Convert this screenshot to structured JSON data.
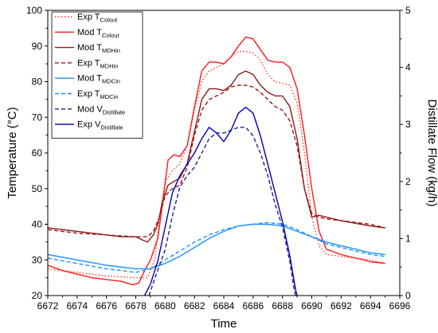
{
  "chart_data": {
    "type": "line",
    "xlabel": "Time",
    "ylabel": "Temperature (°C)",
    "y2label": "Distillate Flow (kg/h)",
    "xlim": [
      6672,
      6696
    ],
    "ylim": [
      20,
      100
    ],
    "y2lim": [
      0,
      5
    ],
    "x_ticks": [
      6672,
      6674,
      6676,
      6678,
      6680,
      6682,
      6684,
      6686,
      6688,
      6690,
      6692,
      6694,
      6696
    ],
    "y_ticks": [
      20,
      30,
      40,
      50,
      60,
      70,
      80,
      90,
      100
    ],
    "y2_ticks": [
      0,
      1,
      2,
      3,
      4,
      5
    ],
    "grid": false,
    "legend_position": "top-left",
    "series": [
      {
        "label_main": "Exp T",
        "label_sub": "Colout",
        "color": "#ff3b30",
        "style": "dotted",
        "axis": "left",
        "points": [
          [
            6672,
            27.5
          ],
          [
            6674,
            26.5
          ],
          [
            6676,
            25.5
          ],
          [
            6678,
            25
          ],
          [
            6678.8,
            25
          ],
          [
            6679.3,
            30
          ],
          [
            6679.7,
            44
          ],
          [
            6680,
            52
          ],
          [
            6680.5,
            55
          ],
          [
            6681,
            57
          ],
          [
            6681.5,
            62
          ],
          [
            6682,
            72
          ],
          [
            6682.5,
            80
          ],
          [
            6683,
            83
          ],
          [
            6683.5,
            84
          ],
          [
            6684,
            85
          ],
          [
            6684.5,
            87
          ],
          [
            6685,
            88.5
          ],
          [
            6685.5,
            88.5
          ],
          [
            6686,
            88
          ],
          [
            6686.5,
            86
          ],
          [
            6687,
            82
          ],
          [
            6687.5,
            80
          ],
          [
            6688,
            79.5
          ],
          [
            6688.5,
            79
          ],
          [
            6689,
            74
          ],
          [
            6689.5,
            60
          ],
          [
            6690,
            42
          ],
          [
            6690.5,
            34
          ],
          [
            6691,
            31.5
          ],
          [
            6692,
            31
          ],
          [
            6694,
            30
          ],
          [
            6695,
            29
          ]
        ]
      },
      {
        "label_main": "Mod T",
        "label_sub": "Colout",
        "color": "#ff1a1a",
        "style": "solid",
        "axis": "left",
        "points": [
          [
            6672,
            28.5
          ],
          [
            6673,
            27
          ],
          [
            6674,
            26
          ],
          [
            6675,
            25
          ],
          [
            6676,
            24.5
          ],
          [
            6677,
            24
          ],
          [
            6677.8,
            23
          ],
          [
            6678.2,
            23.5
          ],
          [
            6678.6,
            27
          ],
          [
            6679,
            30
          ],
          [
            6679.5,
            36
          ],
          [
            6679.8,
            45
          ],
          [
            6680.2,
            58
          ],
          [
            6680.6,
            59.5
          ],
          [
            6681,
            59
          ],
          [
            6681.5,
            62
          ],
          [
            6682,
            73
          ],
          [
            6682.5,
            83
          ],
          [
            6683,
            85.5
          ],
          [
            6683.5,
            85.5
          ],
          [
            6684,
            85
          ],
          [
            6684.5,
            87
          ],
          [
            6685,
            90
          ],
          [
            6685.5,
            92.5
          ],
          [
            6686,
            92
          ],
          [
            6686.5,
            89
          ],
          [
            6687,
            86
          ],
          [
            6687.5,
            85.5
          ],
          [
            6688,
            85.5
          ],
          [
            6688.5,
            84
          ],
          [
            6689,
            78
          ],
          [
            6689.5,
            65
          ],
          [
            6690,
            50
          ],
          [
            6690.5,
            38
          ],
          [
            6691,
            33
          ],
          [
            6692,
            31.5
          ],
          [
            6693,
            30.5
          ],
          [
            6694,
            29.5
          ],
          [
            6695,
            29
          ]
        ]
      },
      {
        "label_main": "Mod T",
        "label_sub": "MDHin",
        "color": "#8b1a1a",
        "style": "solid",
        "axis": "left",
        "points": [
          [
            6672,
            39
          ],
          [
            6674,
            38
          ],
          [
            6676,
            37
          ],
          [
            6677,
            36.5
          ],
          [
            6678,
            36.5
          ],
          [
            6678.5,
            35.5
          ],
          [
            6678.8,
            35
          ],
          [
            6679.2,
            37
          ],
          [
            6679.5,
            40
          ],
          [
            6679.8,
            46
          ],
          [
            6680.2,
            51
          ],
          [
            6680.6,
            52
          ],
          [
            6681,
            53
          ],
          [
            6681.5,
            57
          ],
          [
            6682,
            66
          ],
          [
            6682.5,
            75
          ],
          [
            6683,
            78
          ],
          [
            6683.5,
            78
          ],
          [
            6684,
            77.5
          ],
          [
            6684.5,
            79
          ],
          [
            6685,
            82
          ],
          [
            6685.5,
            83
          ],
          [
            6686,
            82
          ],
          [
            6686.5,
            79
          ],
          [
            6687,
            77
          ],
          [
            6687.5,
            76
          ],
          [
            6688,
            76
          ],
          [
            6688.5,
            73
          ],
          [
            6689,
            64
          ],
          [
            6689.5,
            50
          ],
          [
            6690,
            42
          ],
          [
            6690.5,
            42.5
          ],
          [
            6691,
            42
          ],
          [
            6692,
            41
          ],
          [
            6694,
            39.5
          ],
          [
            6695,
            39
          ]
        ]
      },
      {
        "label_main": "Exp T",
        "label_sub": "MDHin",
        "color": "#a31515",
        "style": "dashed",
        "axis": "left",
        "points": [
          [
            6672,
            38.5
          ],
          [
            6674,
            37.5
          ],
          [
            6676,
            37
          ],
          [
            6678,
            36.5
          ],
          [
            6678.8,
            36.5
          ],
          [
            6679.2,
            38
          ],
          [
            6679.6,
            42
          ],
          [
            6680,
            48
          ],
          [
            6680.5,
            50
          ],
          [
            6681,
            51
          ],
          [
            6681.5,
            56
          ],
          [
            6682,
            65
          ],
          [
            6682.5,
            72
          ],
          [
            6683,
            75
          ],
          [
            6683.5,
            76
          ],
          [
            6684,
            77
          ],
          [
            6684.5,
            78.5
          ],
          [
            6685,
            79
          ],
          [
            6685.5,
            79
          ],
          [
            6686,
            78.5
          ],
          [
            6686.5,
            77
          ],
          [
            6687,
            75
          ],
          [
            6687.5,
            73
          ],
          [
            6688,
            72
          ],
          [
            6688.5,
            69
          ],
          [
            6689,
            62
          ],
          [
            6689.5,
            50
          ],
          [
            6690,
            43
          ],
          [
            6690.5,
            42
          ],
          [
            6691,
            41.5
          ],
          [
            6692,
            41
          ],
          [
            6694,
            40
          ],
          [
            6695,
            39
          ]
        ]
      },
      {
        "label_main": "Mod T",
        "label_sub": "MDCin",
        "color": "#1e90ff",
        "style": "solid",
        "axis": "left",
        "points": [
          [
            6672,
            31.5
          ],
          [
            6674,
            30
          ],
          [
            6676,
            28.5
          ],
          [
            6678,
            27.5
          ],
          [
            6679,
            27.5
          ],
          [
            6680,
            29
          ],
          [
            6681,
            31
          ],
          [
            6682,
            33.5
          ],
          [
            6683,
            36
          ],
          [
            6684,
            38
          ],
          [
            6685,
            39.5
          ],
          [
            6686,
            40
          ],
          [
            6687,
            40
          ],
          [
            6688,
            39.5
          ],
          [
            6689,
            38
          ],
          [
            6690,
            36.5
          ],
          [
            6691,
            35
          ],
          [
            6692,
            34
          ],
          [
            6693,
            33
          ],
          [
            6694,
            32
          ],
          [
            6695,
            31.5
          ]
        ]
      },
      {
        "label_main": "Exp T",
        "label_sub": "MDCin",
        "color": "#1e90ff",
        "style": "dashed",
        "axis": "left",
        "points": [
          [
            6672,
            30.5
          ],
          [
            6674,
            29
          ],
          [
            6676,
            27.5
          ],
          [
            6678,
            26.5
          ],
          [
            6679,
            27.5
          ],
          [
            6680,
            30
          ],
          [
            6681,
            32.5
          ],
          [
            6682,
            35
          ],
          [
            6683,
            37
          ],
          [
            6684,
            38.5
          ],
          [
            6685,
            39.5
          ],
          [
            6686,
            40
          ],
          [
            6687,
            40.5
          ],
          [
            6688,
            40
          ],
          [
            6689,
            38.5
          ],
          [
            6690,
            36.5
          ],
          [
            6691,
            34.5
          ],
          [
            6692,
            33.5
          ],
          [
            6693,
            32.5
          ],
          [
            6694,
            31.5
          ],
          [
            6695,
            31
          ]
        ]
      },
      {
        "label_main": "Mod V",
        "label_sub": "Distillate",
        "color": "#1f1f8f",
        "style": "dashed",
        "axis": "right",
        "points": [
          [
            6678.9,
            0
          ],
          [
            6679.3,
            0.3
          ],
          [
            6680,
            0.8
          ],
          [
            6680.5,
            1.4
          ],
          [
            6681,
            1.9
          ],
          [
            6681.5,
            2.1
          ],
          [
            6682,
            2.25
          ],
          [
            6682.5,
            2.5
          ],
          [
            6683,
            2.75
          ],
          [
            6683.5,
            2.85
          ],
          [
            6684,
            2.85
          ],
          [
            6684.5,
            2.9
          ],
          [
            6685,
            2.95
          ],
          [
            6685.5,
            2.95
          ],
          [
            6686,
            2.8
          ],
          [
            6686.5,
            2.5
          ],
          [
            6687,
            2.1
          ],
          [
            6687.5,
            1.6
          ],
          [
            6688,
            1.2
          ],
          [
            6688.5,
            0.6
          ],
          [
            6688.8,
            0.1
          ],
          [
            6688.9,
            0
          ]
        ]
      },
      {
        "label_main": "Exp V",
        "label_sub": "Distillate",
        "color": "#0000b0",
        "style": "solid",
        "axis": "right",
        "points": [
          [
            6678.6,
            0
          ],
          [
            6679,
            0.2
          ],
          [
            6679.5,
            0.6
          ],
          [
            6680,
            1.2
          ],
          [
            6680.5,
            1.8
          ],
          [
            6681,
            2.1
          ],
          [
            6681.5,
            2.3
          ],
          [
            6682,
            2.5
          ],
          [
            6682.5,
            2.75
          ],
          [
            6683,
            2.95
          ],
          [
            6683.5,
            2.85
          ],
          [
            6684,
            2.7
          ],
          [
            6684.5,
            2.9
          ],
          [
            6685,
            3.2
          ],
          [
            6685.5,
            3.3
          ],
          [
            6686,
            3.2
          ],
          [
            6686.5,
            2.8
          ],
          [
            6687,
            2.3
          ],
          [
            6687.5,
            1.8
          ],
          [
            6688,
            1.3
          ],
          [
            6688.5,
            0.7
          ],
          [
            6688.9,
            0.1
          ],
          [
            6689,
            0
          ]
        ]
      }
    ]
  }
}
